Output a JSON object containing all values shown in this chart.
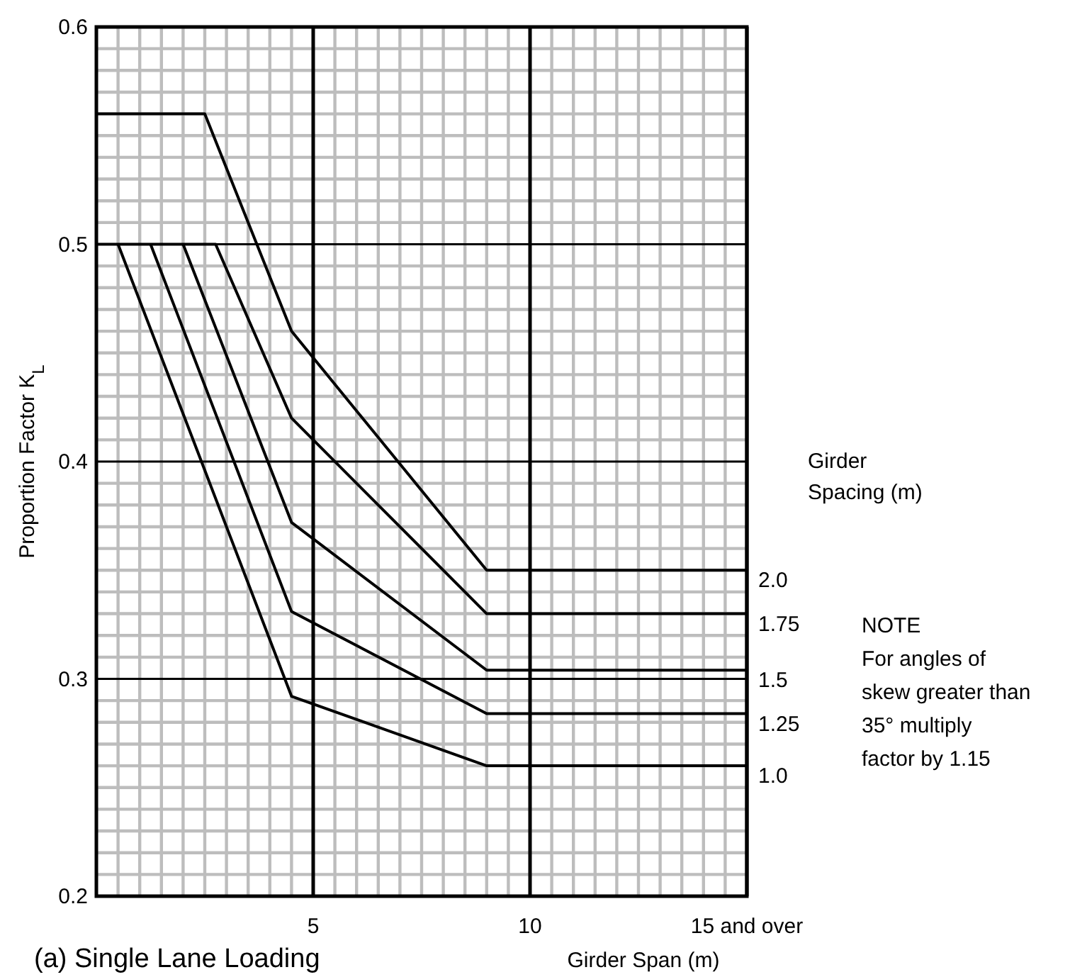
{
  "chart_data": {
    "type": "line",
    "title": "(a) Single Lane Loading",
    "xlabel": "Girder Span (m)",
    "ylabel": "Proportion Factor K$_{L}$",
    "legend_title": "Girder Spacing (m)",
    "annotations": [
      "NOTE\nFor angles of\nskew greater than\n35° multiply\nfactor by 1.15"
    ],
    "xlim": [
      0,
      15
    ],
    "ylim": [
      0.2,
      0.6
    ],
    "xticks": [
      5,
      10,
      {
        "value": 15,
        "label": "15 and over"
      }
    ],
    "yticks": [
      0.2,
      0.3,
      0.4,
      0.5,
      0.6
    ],
    "grid": true,
    "marker": "none",
    "line_style": "solid",
    "series": [
      {
        "name": "2.0",
        "color": "#000000",
        "x": [
          0,
          2.5,
          4.5,
          9,
          15
        ],
        "values": [
          0.56,
          0.56,
          0.46,
          0.35,
          0.35
        ]
      },
      {
        "name": "1.75",
        "color": "#000000",
        "x": [
          0,
          2.75,
          4.5,
          9,
          15
        ],
        "values": [
          0.5,
          0.5,
          0.42,
          0.33,
          0.33
        ]
      },
      {
        "name": "1.5",
        "color": "#000000",
        "x": [
          2,
          4.5,
          9,
          15
        ],
        "values": [
          0.5,
          0.372,
          0.304,
          0.304
        ]
      },
      {
        "name": "1.25",
        "color": "#000000",
        "x": [
          1.25,
          4.5,
          9,
          15
        ],
        "values": [
          0.5,
          0.331,
          0.284,
          0.284
        ]
      },
      {
        "name": "1.0",
        "color": "#000000",
        "x": [
          0.5,
          4.5,
          9,
          15
        ],
        "values": [
          0.5,
          0.292,
          0.26,
          0.26
        ]
      }
    ]
  }
}
